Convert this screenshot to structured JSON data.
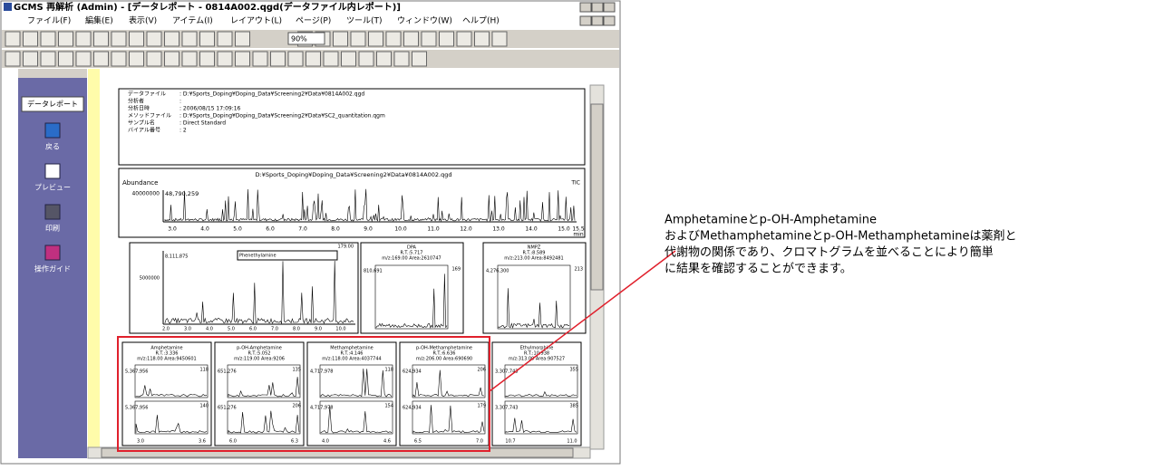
{
  "window": {
    "title": "GCMS 再解析 (Admin) - [データレポート - 0814A002.qgd(データファイル内レポート)]"
  },
  "menu": [
    "ファイル(F)",
    "編集(E)",
    "表示(V)",
    "アイテム(I)",
    "レイアウト(L)",
    "ページ(P)",
    "ツール(T)",
    "ウィンドウ(W)",
    "ヘルプ(H)"
  ],
  "toolbar": {
    "zoom": "90%"
  },
  "sidebar": {
    "title": "データレポート",
    "items": [
      "戻る",
      "プレビュー",
      "印刷",
      "操作ガイド"
    ]
  },
  "report": {
    "info": [
      {
        "label": "データファイル",
        "value": ": D:¥Sports_Doping¥Doping_Data¥Screening2¥Data¥0814A002.qgd"
      },
      {
        "label": "分析者",
        "value": ":"
      },
      {
        "label": "分析日時",
        "value": ": 2006/08/15 17:09:16"
      },
      {
        "label": "メソッドファイル",
        "value": ": D:¥Sports_Doping¥Doping_Data¥Screening2¥Data¥SC2_quantitation.qgm"
      },
      {
        "label": "サンプル名",
        "value": ": Direct Standard"
      },
      {
        "label": "バイアル番号",
        "value": ": 2"
      }
    ],
    "tic": {
      "title": "D:¥Sports_Doping¥Doping_Data¥Screening2¥Data¥0814A002.qgd",
      "y_label": "Abundance",
      "trace": "TIC",
      "ytick": "40000000",
      "max": "48,790,259",
      "xticks": [
        "3.0",
        "4.0",
        "5.0",
        "6.0",
        "7.0",
        "8.0",
        "9.0",
        "10.0",
        "11.0",
        "12.0",
        "13.0",
        "14.0",
        "15.0"
      ],
      "x_end": "15.5",
      "x_unit": "min"
    },
    "overview": {
      "name": "Phenethylamine",
      "ytick": "5000000",
      "max": "8,111,875",
      "ion": "179.00",
      "xticks": [
        "2.0",
        "3.0",
        "4.0",
        "5.0",
        "6.0",
        "7.0",
        "8.0",
        "9.0"
      ],
      "x_end": "10.0"
    },
    "compounds_top": [
      {
        "name": "DPA",
        "rt": "R.T.:5.717",
        "mz_area": "m/z:169.00 Area:2610747",
        "max": "810,691",
        "ion": "169"
      },
      {
        "name": "NMPZ",
        "rt": "R.T.:8.589",
        "mz_area": "m/z:213.00 Area:8492481",
        "max": "4,276,300",
        "ion": "213"
      }
    ],
    "compounds": [
      {
        "name": "Amphetamine",
        "rt": "R.T.:3.336",
        "mz_area": "m/z:118.00 Area:9450601",
        "max": "5,367,956",
        "ions": [
          "118",
          "140"
        ],
        "xticks": [
          "3.0",
          "3.6"
        ]
      },
      {
        "name": "p-OH-Amphetamine",
        "rt": "R.T.:5.052",
        "mz_area": "m/z:119.00 Area:9206",
        "max": "651,276",
        "ions": [
          "135",
          "206"
        ],
        "xticks": [
          "6.0",
          "6.3"
        ]
      },
      {
        "name": "Methamphetamine",
        "rt": "R.T.:4.146",
        "mz_area": "m/z:118.00 Area:4037744",
        "max": "4,717,978",
        "ions": [
          "118",
          "154"
        ],
        "xticks": [
          "4.0",
          "4.6"
        ]
      },
      {
        "name": "p-OH-Methamphetamine",
        "rt": "R.T.:6.636",
        "mz_area": "m/z:206.00 Area:690690",
        "max": "624,934",
        "ions": [
          "206",
          "179"
        ],
        "xticks": [
          "6.5",
          "7.0"
        ]
      },
      {
        "name": "Ethylmorphine",
        "rt": "R.T.:10.938",
        "mz_area": "m/z:313.00 Area:907527",
        "max": "3,307,743",
        "ions": [
          "355",
          "385"
        ],
        "xticks": [
          "10.7",
          "11.0"
        ]
      }
    ]
  },
  "callout": {
    "lines": [
      "Amphetamineとp-OH-Amphetamine",
      "およびMethamphetamineとp-OH-Methamphetamineは薬剤と",
      "代謝物の関係であり、クロマトグラムを並べることにより簡単",
      "に結果を確認することができます。"
    ]
  }
}
